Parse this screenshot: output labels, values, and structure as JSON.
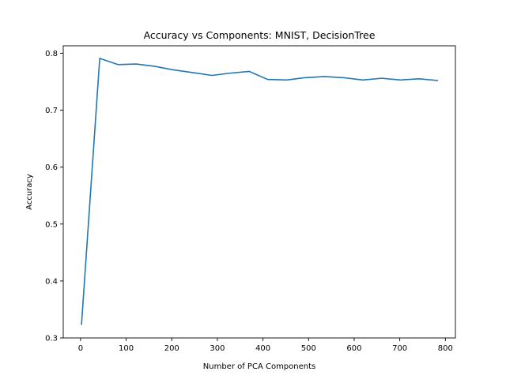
{
  "chart_data": {
    "type": "line",
    "title": "Accuracy vs Components: MNIST, DecisionTree",
    "xlabel": "Number of PCA Components",
    "ylabel": "Accuracy",
    "xlim": [
      -38,
      822
    ],
    "ylim": [
      0.3,
      0.813
    ],
    "xticks": [
      0,
      100,
      200,
      300,
      400,
      500,
      600,
      700,
      800
    ],
    "yticks": [
      0.3,
      0.4,
      0.5,
      0.6,
      0.7,
      0.8
    ],
    "grid": false,
    "series": [
      {
        "color": "#1f77b4",
        "x": [
          2,
          42,
          82,
          122,
          162,
          202,
          246,
          288,
          328,
          370,
          410,
          452,
          492,
          535,
          577,
          619,
          660,
          702,
          742,
          784
        ],
        "y": [
          0.323,
          0.791,
          0.78,
          0.781,
          0.777,
          0.771,
          0.766,
          0.761,
          0.765,
          0.768,
          0.754,
          0.753,
          0.757,
          0.759,
          0.757,
          0.753,
          0.756,
          0.753,
          0.755,
          0.752
        ]
      }
    ]
  }
}
